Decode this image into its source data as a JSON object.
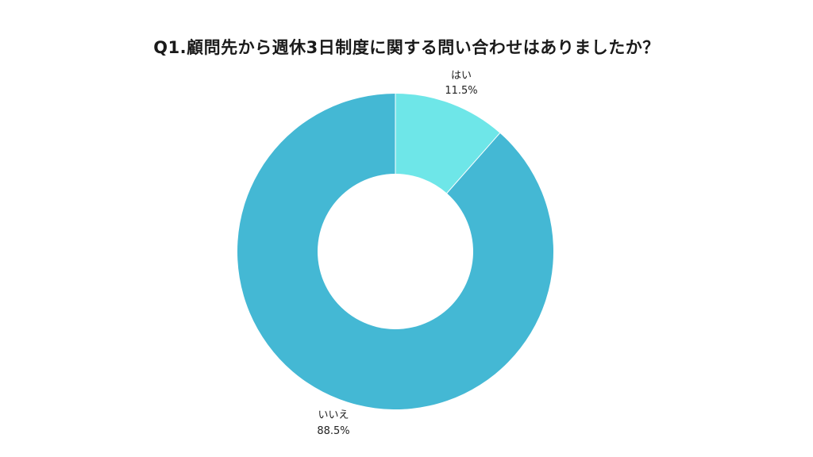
{
  "chart_data": {
    "type": "pie",
    "title": "Q1.顧問先から週休3日制度に関する問い合わせはありましたか？",
    "donut": true,
    "slices": [
      {
        "label": "はい",
        "value": 11.5,
        "value_label": "11.5%",
        "color": "#6ee6e8"
      },
      {
        "label": "いいえ",
        "value": 88.5,
        "value_label": "88.5%",
        "color": "#44b8d4"
      }
    ],
    "start_angle": "top",
    "direction": "clockwise",
    "legend": "none"
  }
}
